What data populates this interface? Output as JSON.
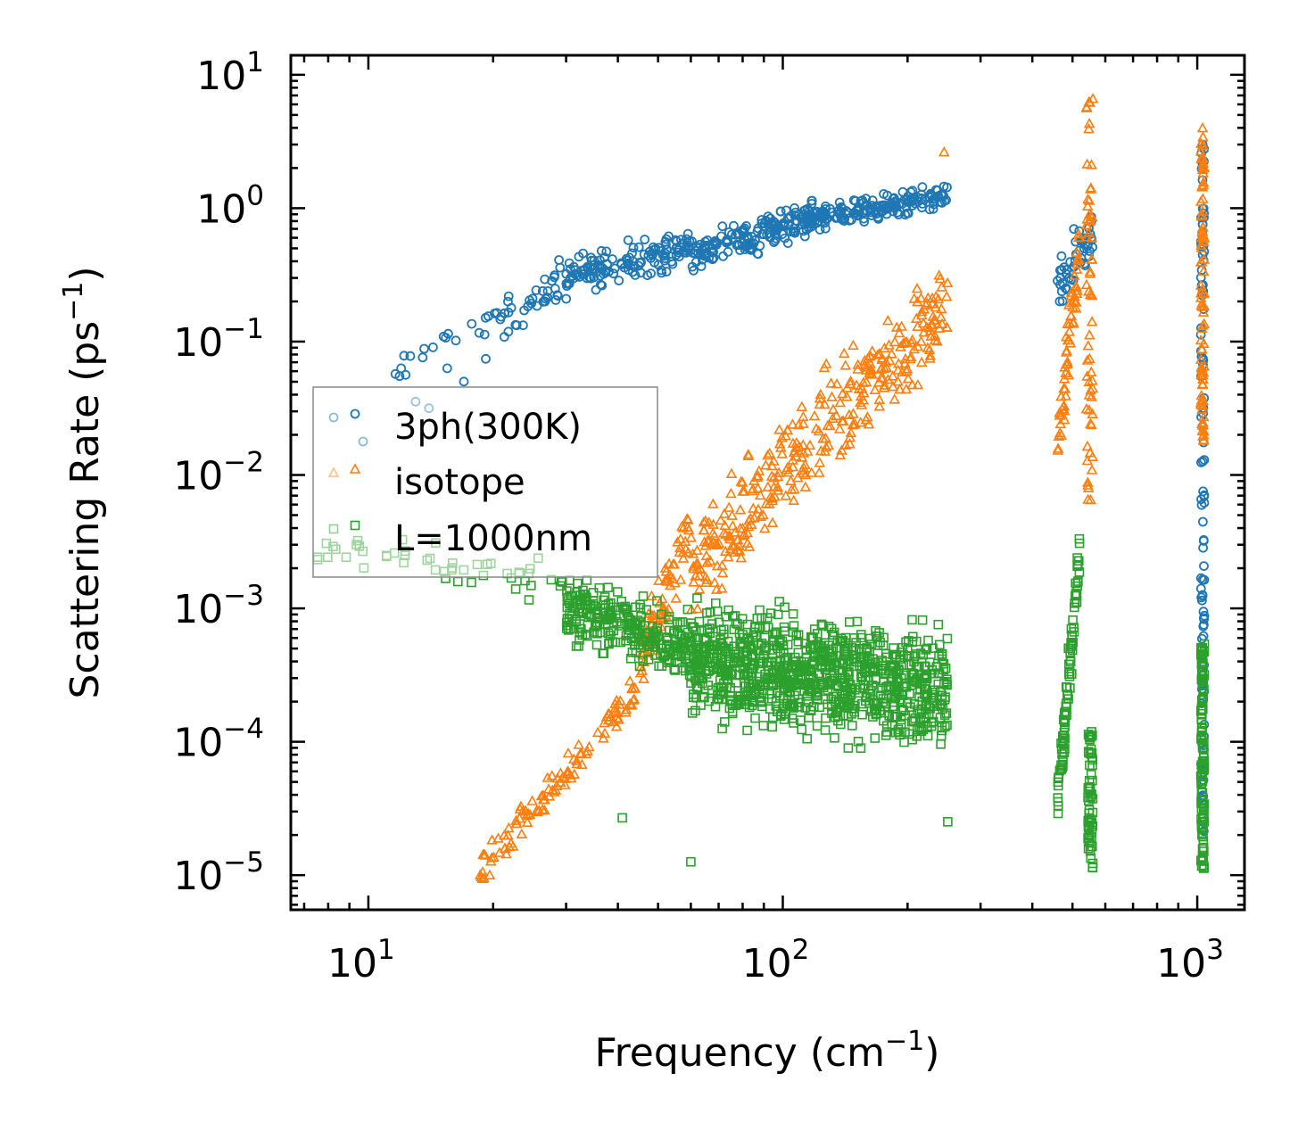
{
  "chart_data": {
    "type": "scatter",
    "xscale": "log",
    "yscale": "log",
    "xlabel": "Frequency (cm",
    "xlabel_exp": "−1",
    "xlabel_tail": ")",
    "ylabel": "Scattering Rate (ps",
    "ylabel_exp": "−1",
    "ylabel_tail": ")",
    "xlim": [
      6.5,
      1300
    ],
    "ylim": [
      5.5e-06,
      14
    ],
    "x_ticks": [
      {
        "value": 10,
        "base": "10",
        "exp": "1"
      },
      {
        "value": 100,
        "base": "10",
        "exp": "2"
      },
      {
        "value": 1000,
        "base": "10",
        "exp": "3"
      }
    ],
    "y_ticks": [
      {
        "value": 10,
        "base": "10",
        "exp": "1"
      },
      {
        "value": 1,
        "base": "10",
        "exp": "0"
      },
      {
        "value": 0.1,
        "base": "10",
        "exp": "−1"
      },
      {
        "value": 0.01,
        "base": "10",
        "exp": "−2"
      },
      {
        "value": 0.001,
        "base": "10",
        "exp": "−3"
      },
      {
        "value": 0.0001,
        "base": "10",
        "exp": "−4"
      },
      {
        "value": 1e-05,
        "base": "10",
        "exp": "−5"
      }
    ],
    "legend": {
      "placement": "center-left",
      "entries": [
        {
          "label": "3ph(300K)",
          "series": "3ph"
        },
        {
          "label": "isotope",
          "series": "isotope"
        },
        {
          "label": "L=1000nm",
          "series": "boundary"
        }
      ]
    },
    "series": [
      {
        "name": "3ph(300K)",
        "key": "3ph",
        "color": "#1f77b4",
        "marker": "circle",
        "bands": [
          {
            "x": [
              11,
              18
            ],
            "y_log10": [
              -1.3,
              -0.85
            ],
            "spread": 0.15,
            "density": 12
          },
          {
            "x": [
              18,
              35
            ],
            "y_log10": [
              -1.0,
              -0.4
            ],
            "spread": 0.25,
            "density": 50
          },
          {
            "x": [
              30,
              60
            ],
            "y_log10": [
              -0.5,
              -0.3
            ],
            "spread": 0.2,
            "density": 130
          },
          {
            "x": [
              60,
              120
            ],
            "y_log10": [
              -0.35,
              -0.05
            ],
            "spread": 0.18,
            "density": 170
          },
          {
            "x": [
              110,
              250
            ],
            "y_log10": [
              -0.1,
              0.1
            ],
            "spread": 0.12,
            "density": 170
          },
          {
            "x": [
              460,
              560
            ],
            "y_log10": [
              -0.6,
              -0.2
            ],
            "spread": 0.3,
            "density": 50
          },
          {
            "x": [
              1020,
              1040
            ],
            "y_log10": [
              -4.9,
              0.5
            ],
            "spread": 0.0,
            "density": 110
          }
        ],
        "points": [
          [
            12,
            -1.2
          ],
          [
            12.3,
            -1.25
          ],
          [
            13,
            -1.45
          ],
          [
            17,
            -1.3
          ],
          [
            15.5,
            -1.2
          ],
          [
            14,
            -1.5
          ]
        ]
      },
      {
        "name": "isotope",
        "key": "isotope",
        "color": "#ff7f0e",
        "marker": "triangle",
        "bands": [
          {
            "x": [
              18.5,
              45
            ],
            "y_log10": [
              -5.0,
              -3.6
            ],
            "spread": 0.2,
            "density": 110
          },
          {
            "x": [
              45,
              60
            ],
            "y_log10": [
              -3.4,
              -2.4
            ],
            "spread": 0.35,
            "density": 80
          },
          {
            "x": [
              60,
              250
            ],
            "y_log10": [
              -2.7,
              -0.7
            ],
            "spread": 0.55,
            "density": 350
          },
          {
            "x": [
              460,
              520
            ],
            "y_log10": [
              -1.8,
              -0.3
            ],
            "spread": 0.4,
            "density": 60
          },
          {
            "x": [
              540,
              560
            ],
            "y_log10": [
              -2.2,
              0.8
            ],
            "spread": 0.0,
            "density": 60
          },
          {
            "x": [
              1020,
              1040
            ],
            "y_log10": [
              -1.8,
              0.55
            ],
            "spread": 0.0,
            "density": 90
          }
        ],
        "points": [
          [
            245,
            0.42
          ],
          [
            560,
            0.82
          ],
          [
            1030,
            0.6
          ]
        ]
      },
      {
        "name": "L=1000nm",
        "key": "boundary",
        "color": "#2ca02c",
        "marker": "square",
        "bands": [
          {
            "x": [
              7.5,
              30
            ],
            "y_log10": [
              -2.55,
              -2.8
            ],
            "spread": 0.2,
            "density": 50
          },
          {
            "x": [
              30,
              60
            ],
            "y_log10": [
              -3.0,
              -3.3
            ],
            "spread": 0.35,
            "density": 260
          },
          {
            "x": [
              60,
              250
            ],
            "y_log10": [
              -3.4,
              -3.6
            ],
            "spread": 0.6,
            "density": 950
          },
          {
            "x": [
              460,
              520
            ],
            "y_log10": [
              -4.5,
              -2.6
            ],
            "spread": 0.3,
            "density": 90
          },
          {
            "x": [
              545,
              560
            ],
            "y_log10": [
              -4.95,
              -3.9
            ],
            "spread": 0.0,
            "density": 60
          },
          {
            "x": [
              1020,
              1040
            ],
            "y_log10": [
              -4.95,
              -3.25
            ],
            "spread": 0.0,
            "density": 110
          }
        ],
        "points": [
          [
            41,
            -4.57
          ],
          [
            60,
            -4.9
          ],
          [
            250,
            -4.6
          ]
        ]
      }
    ]
  }
}
